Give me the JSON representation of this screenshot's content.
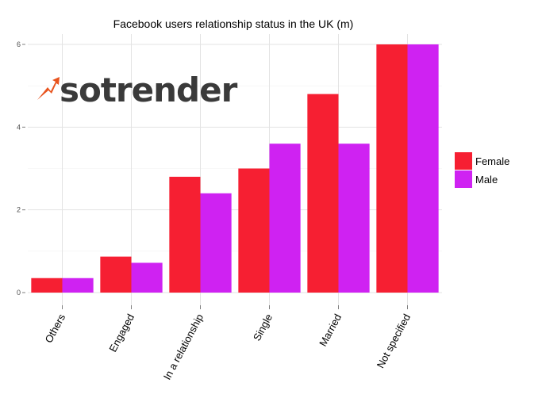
{
  "chart_data": {
    "type": "bar",
    "title": "Facebook users relationship status in the UK (m)",
    "xlabel": "",
    "ylabel": "",
    "categories": [
      "Others",
      "Engaged",
      "In a relationship",
      "Single",
      "Married",
      "Not specified"
    ],
    "series": [
      {
        "name": "Female",
        "color": "#f61f32",
        "values": [
          0.35,
          0.87,
          2.8,
          3.0,
          4.8,
          6.0
        ]
      },
      {
        "name": "Male",
        "color": "#cf22f2",
        "values": [
          0.35,
          0.72,
          2.4,
          3.6,
          3.6,
          6.0
        ]
      }
    ],
    "ylim": [
      0,
      6.25
    ],
    "yticks": [
      0,
      2,
      4,
      6
    ],
    "grid": true,
    "legend_position": "right"
  },
  "logo": {
    "text": "sotrender",
    "accent_color": "#e8531d",
    "text_color": "#3a3a3a"
  }
}
